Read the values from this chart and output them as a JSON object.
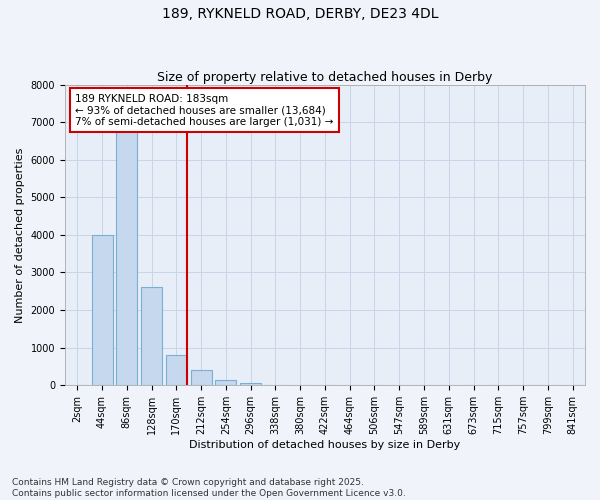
{
  "title": "189, RYKNELD ROAD, DERBY, DE23 4DL",
  "subtitle": "Size of property relative to detached houses in Derby",
  "xlabel": "Distribution of detached houses by size in Derby",
  "ylabel": "Number of detached properties",
  "categories": [
    "2sqm",
    "44sqm",
    "86sqm",
    "128sqm",
    "170sqm",
    "212sqm",
    "254sqm",
    "296sqm",
    "338sqm",
    "380sqm",
    "422sqm",
    "464sqm",
    "506sqm",
    "547sqm",
    "589sqm",
    "631sqm",
    "673sqm",
    "715sqm",
    "757sqm",
    "799sqm",
    "841sqm"
  ],
  "values": [
    5,
    4000,
    7300,
    2600,
    800,
    400,
    130,
    60,
    10,
    0,
    0,
    0,
    0,
    0,
    0,
    0,
    0,
    0,
    0,
    0,
    0
  ],
  "bar_color": "#c5d8ed",
  "bar_edge_color": "#7aafd4",
  "vline_color": "#cc0000",
  "ylim": [
    0,
    8000
  ],
  "yticks": [
    0,
    1000,
    2000,
    3000,
    4000,
    5000,
    6000,
    7000,
    8000
  ],
  "annotation_line1": "189 RYKNELD ROAD: 183sqm",
  "annotation_line2": "← 93% of detached houses are smaller (13,684)",
  "annotation_line3": "7% of semi-detached houses are larger (1,031) →",
  "annotation_box_color": "#ffffff",
  "annotation_box_edge_color": "#cc0000",
  "footnote1": "Contains HM Land Registry data © Crown copyright and database right 2025.",
  "footnote2": "Contains public sector information licensed under the Open Government Licence v3.0.",
  "grid_color": "#c8d4e8",
  "background_color": "#f0f4fa",
  "plot_bg_color": "#e8eef8",
  "title_fontsize": 10,
  "subtitle_fontsize": 9,
  "label_fontsize": 8,
  "tick_fontsize": 7,
  "annotation_fontsize": 7.5,
  "footnote_fontsize": 6.5
}
